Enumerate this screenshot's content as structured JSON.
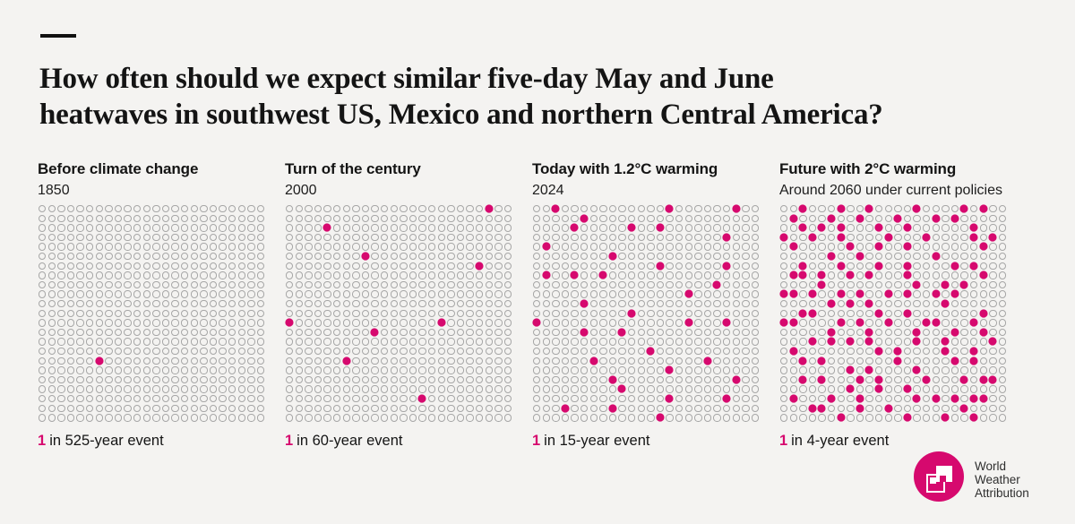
{
  "colors": {
    "background": "#f4f3f1",
    "accent_pink": "#d6096e",
    "dot_outline": "#a6a6a6",
    "text": "#141414"
  },
  "header": {
    "title_line1": "How often should we expect similar five-day May and June",
    "title_line2": "heatwaves in southwest US, Mexico and northern Central America?"
  },
  "logo": {
    "lines": [
      "World",
      "Weather",
      "Attribution"
    ]
  },
  "chart_data": {
    "type": "dot-matrix",
    "title": "How often should we expect similar five-day May and June heatwaves in southwest US, Mexico and northern Central America?",
    "grid": {
      "rows": 23,
      "cols": 24,
      "dots_per_panel": 552
    },
    "panels": [
      {
        "title": "Before climate change",
        "subtitle": "1850",
        "caption_highlight": "1",
        "caption_text": "in 525-year event",
        "return_period_years": 525,
        "filled_count": 1,
        "filled": [
          [
            16,
            6
          ]
        ]
      },
      {
        "title": "Turn of the century",
        "subtitle": "2000",
        "caption_highlight": "1",
        "caption_text": "in 60-year event",
        "return_period_years": 60,
        "filled_count": 9,
        "filled": [
          [
            0,
            21
          ],
          [
            2,
            4
          ],
          [
            5,
            8
          ],
          [
            6,
            20
          ],
          [
            12,
            0
          ],
          [
            12,
            16
          ],
          [
            13,
            9
          ],
          [
            16,
            6
          ],
          [
            20,
            14
          ]
        ]
      },
      {
        "title": "Today with 1.2°C warming",
        "subtitle": "2024",
        "caption_highlight": "1",
        "caption_text": "in 15-year event",
        "return_period_years": 15,
        "filled_count": 36,
        "filled": [
          [
            0,
            2
          ],
          [
            0,
            14
          ],
          [
            0,
            21
          ],
          [
            1,
            5
          ],
          [
            2,
            4
          ],
          [
            2,
            10
          ],
          [
            2,
            13
          ],
          [
            3,
            20
          ],
          [
            4,
            1
          ],
          [
            5,
            8
          ],
          [
            6,
            13
          ],
          [
            6,
            20
          ],
          [
            7,
            1
          ],
          [
            7,
            4
          ],
          [
            7,
            7
          ],
          [
            8,
            19
          ],
          [
            9,
            16
          ],
          [
            10,
            5
          ],
          [
            11,
            10
          ],
          [
            12,
            0
          ],
          [
            12,
            16
          ],
          [
            12,
            20
          ],
          [
            13,
            5
          ],
          [
            13,
            9
          ],
          [
            15,
            12
          ],
          [
            16,
            6
          ],
          [
            16,
            18
          ],
          [
            17,
            14
          ],
          [
            18,
            8
          ],
          [
            18,
            21
          ],
          [
            19,
            9
          ],
          [
            20,
            14
          ],
          [
            20,
            20
          ],
          [
            21,
            3
          ],
          [
            21,
            8
          ],
          [
            22,
            13
          ]
        ]
      },
      {
        "title": "Future with 2°C warming",
        "subtitle": "Around 2060 under current policies",
        "caption_highlight": "1",
        "caption_text": "in 4-year event",
        "return_period_years": 4,
        "filled_count": 129,
        "filled": [
          [
            0,
            2
          ],
          [
            0,
            6
          ],
          [
            0,
            9
          ],
          [
            0,
            14
          ],
          [
            0,
            19
          ],
          [
            0,
            21
          ],
          [
            1,
            1
          ],
          [
            1,
            5
          ],
          [
            1,
            8
          ],
          [
            1,
            12
          ],
          [
            1,
            16
          ],
          [
            1,
            18
          ],
          [
            2,
            2
          ],
          [
            2,
            4
          ],
          [
            2,
            6
          ],
          [
            2,
            10
          ],
          [
            2,
            13
          ],
          [
            2,
            20
          ],
          [
            3,
            0
          ],
          [
            3,
            3
          ],
          [
            3,
            6
          ],
          [
            3,
            11
          ],
          [
            3,
            15
          ],
          [
            3,
            20
          ],
          [
            3,
            22
          ],
          [
            4,
            1
          ],
          [
            4,
            7
          ],
          [
            4,
            10
          ],
          [
            4,
            13
          ],
          [
            4,
            21
          ],
          [
            5,
            5
          ],
          [
            5,
            8
          ],
          [
            5,
            16
          ],
          [
            6,
            2
          ],
          [
            6,
            6
          ],
          [
            6,
            10
          ],
          [
            6,
            13
          ],
          [
            6,
            18
          ],
          [
            6,
            20
          ],
          [
            7,
            1
          ],
          [
            7,
            2
          ],
          [
            7,
            4
          ],
          [
            7,
            7
          ],
          [
            7,
            9
          ],
          [
            7,
            13
          ],
          [
            7,
            21
          ],
          [
            8,
            4
          ],
          [
            8,
            14
          ],
          [
            8,
            17
          ],
          [
            8,
            19
          ],
          [
            9,
            0
          ],
          [
            9,
            1
          ],
          [
            9,
            3
          ],
          [
            9,
            6
          ],
          [
            9,
            8
          ],
          [
            9,
            11
          ],
          [
            9,
            13
          ],
          [
            9,
            16
          ],
          [
            9,
            18
          ],
          [
            10,
            5
          ],
          [
            10,
            7
          ],
          [
            10,
            9
          ],
          [
            10,
            17
          ],
          [
            11,
            2
          ],
          [
            11,
            3
          ],
          [
            11,
            10
          ],
          [
            11,
            13
          ],
          [
            11,
            21
          ],
          [
            12,
            0
          ],
          [
            12,
            1
          ],
          [
            12,
            6
          ],
          [
            12,
            8
          ],
          [
            12,
            11
          ],
          [
            12,
            15
          ],
          [
            12,
            16
          ],
          [
            12,
            20
          ],
          [
            13,
            5
          ],
          [
            13,
            9
          ],
          [
            13,
            14
          ],
          [
            13,
            18
          ],
          [
            13,
            21
          ],
          [
            14,
            3
          ],
          [
            14,
            5
          ],
          [
            14,
            7
          ],
          [
            14,
            9
          ],
          [
            14,
            14
          ],
          [
            14,
            17
          ],
          [
            14,
            22
          ],
          [
            15,
            1
          ],
          [
            15,
            10
          ],
          [
            15,
            12
          ],
          [
            15,
            17
          ],
          [
            15,
            20
          ],
          [
            16,
            2
          ],
          [
            16,
            4
          ],
          [
            16,
            12
          ],
          [
            16,
            18
          ],
          [
            16,
            20
          ],
          [
            17,
            7
          ],
          [
            17,
            9
          ],
          [
            17,
            14
          ],
          [
            18,
            2
          ],
          [
            18,
            4
          ],
          [
            18,
            8
          ],
          [
            18,
            10
          ],
          [
            18,
            15
          ],
          [
            18,
            19
          ],
          [
            18,
            21
          ],
          [
            18,
            22
          ],
          [
            19,
            7
          ],
          [
            19,
            10
          ],
          [
            19,
            13
          ],
          [
            20,
            1
          ],
          [
            20,
            5
          ],
          [
            20,
            8
          ],
          [
            20,
            14
          ],
          [
            20,
            16
          ],
          [
            20,
            18
          ],
          [
            20,
            20
          ],
          [
            20,
            21
          ],
          [
            21,
            3
          ],
          [
            21,
            4
          ],
          [
            21,
            8
          ],
          [
            21,
            11
          ],
          [
            21,
            19
          ],
          [
            22,
            6
          ],
          [
            22,
            13
          ],
          [
            22,
            17
          ],
          [
            22,
            20
          ]
        ]
      }
    ]
  }
}
